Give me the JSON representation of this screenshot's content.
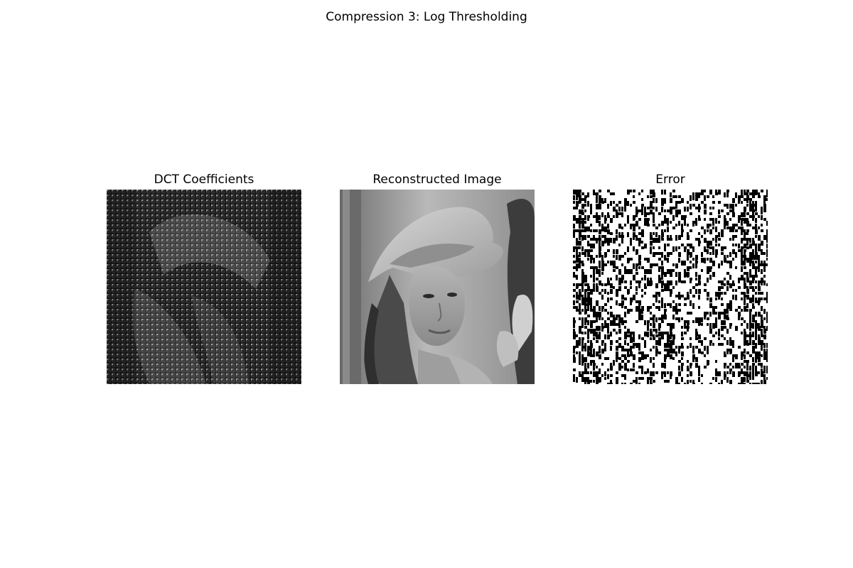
{
  "figure": {
    "title": "Compression 3: Log Thresholding"
  },
  "panels": [
    {
      "title": "DCT Coefficients"
    },
    {
      "title": "Reconstructed Image"
    },
    {
      "title": "Error"
    }
  ]
}
